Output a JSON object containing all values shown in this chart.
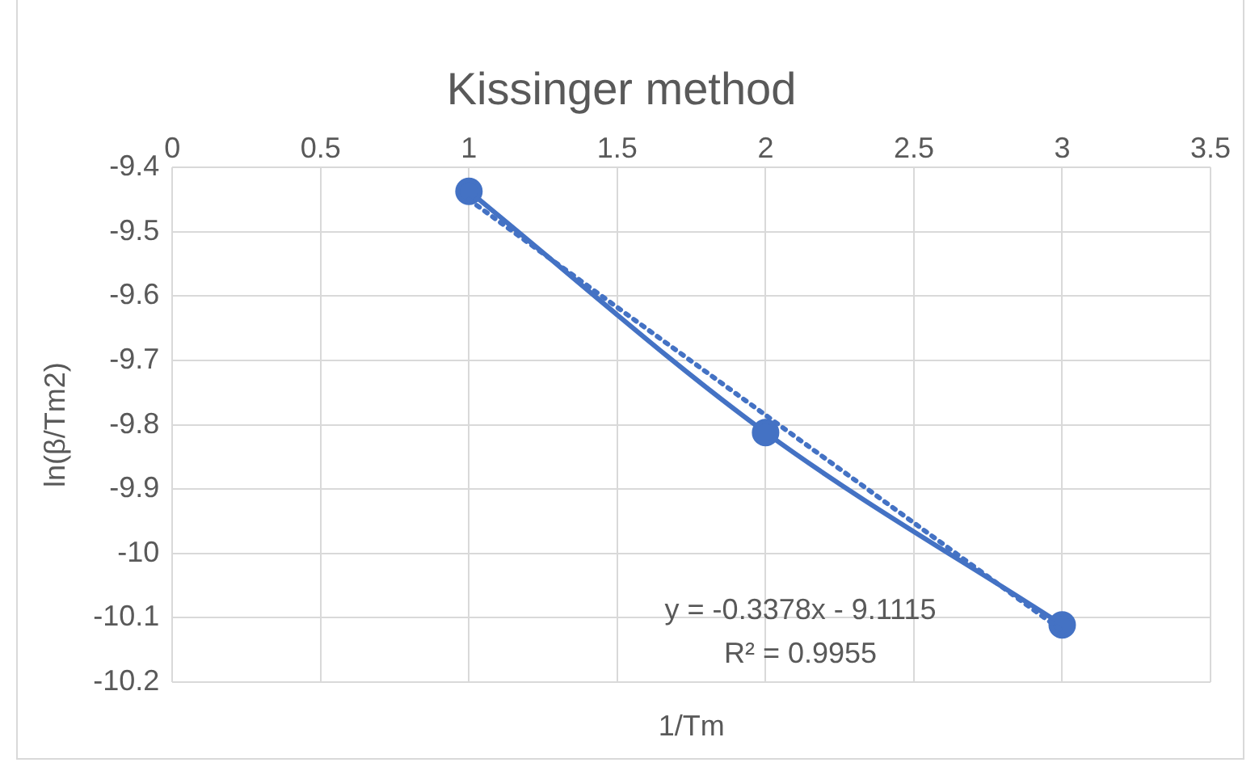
{
  "chart_data": {
    "type": "line",
    "title": "Kissinger method",
    "xlabel": "1/Tm",
    "ylabel": "ln(β/Tm2)",
    "xlim": [
      0,
      3.5
    ],
    "xticks": [
      0,
      0.5,
      1,
      1.5,
      2,
      2.5,
      3,
      3.5
    ],
    "ylim": [
      -10.2,
      -9.4
    ],
    "yticks": [
      -10.2,
      -10.1,
      -10,
      -9.9,
      -9.8,
      -9.7,
      -9.6,
      -9.5,
      -9.4
    ],
    "series": [
      {
        "color": "#4472c4",
        "x": [
          1,
          2,
          3
        ],
        "values": [
          -9.437,
          -9.812,
          -10.111
        ],
        "marker": "circle",
        "line_style": "solid"
      },
      {
        "color": "#4472c4",
        "x": [
          1,
          3
        ],
        "values": [
          -9.45,
          -10.12
        ],
        "marker": "none",
        "line_style": "dotted"
      }
    ],
    "annotations": [
      "y = -0.3378x - 9.1115",
      "R² = 0.9955"
    ],
    "grid": true,
    "legend": false
  }
}
